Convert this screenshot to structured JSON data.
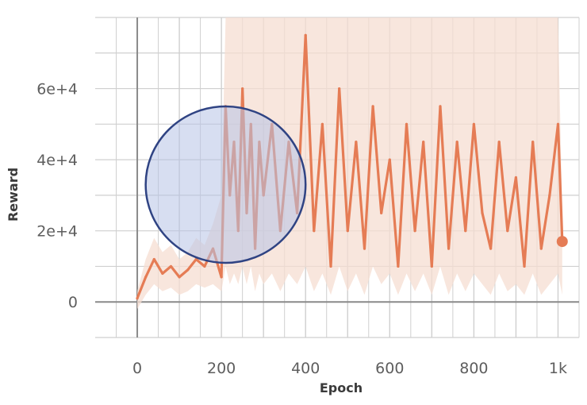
{
  "chart_data": {
    "type": "line",
    "xlabel": "Epoch",
    "ylabel": "Reward",
    "xlim": [
      -100,
      1050
    ],
    "ylim": [
      -10000,
      80000
    ],
    "x_ticks": [
      0,
      200,
      400,
      600,
      800,
      1000
    ],
    "x_tick_labels": [
      "0",
      "200",
      "400",
      "600",
      "800",
      "1k"
    ],
    "y_ticks": [
      0,
      20000,
      40000,
      60000
    ],
    "y_tick_labels": [
      "0",
      "2e+4",
      "4e+4",
      "6e+4"
    ],
    "grid": true,
    "colors": {
      "line": "#e57c55",
      "band": "#f6ddd2",
      "highlight_fill": "#b7c3e6",
      "highlight_stroke": "#2f4383",
      "grid": "#cfcfcf",
      "axis": "#8a8a8a"
    },
    "series": [
      {
        "x": [
          0,
          20,
          40,
          60,
          80,
          100,
          120,
          140,
          160,
          180,
          200,
          210,
          220,
          230,
          240,
          250,
          260,
          270,
          280,
          290,
          300,
          320,
          340,
          360,
          380,
          400,
          420,
          440,
          460,
          480,
          500,
          520,
          540,
          560,
          580,
          600,
          620,
          640,
          660,
          680,
          700,
          720,
          740,
          760,
          780,
          800,
          820,
          840,
          860,
          880,
          900,
          920,
          940,
          960,
          980,
          1000,
          1010
        ],
        "y": [
          1000,
          7000,
          12000,
          8000,
          10000,
          7000,
          9000,
          12000,
          10000,
          15000,
          7000,
          55000,
          30000,
          45000,
          20000,
          60000,
          25000,
          50000,
          15000,
          45000,
          30000,
          50000,
          20000,
          45000,
          25000,
          75000,
          20000,
          50000,
          10000,
          60000,
          20000,
          45000,
          15000,
          55000,
          25000,
          40000,
          10000,
          50000,
          20000,
          45000,
          10000,
          55000,
          15000,
          45000,
          20000,
          50000,
          25000,
          15000,
          45000,
          20000,
          35000,
          10000,
          45000,
          15000,
          30000,
          50000,
          17000
        ],
        "low": [
          -2000,
          2000,
          5000,
          3000,
          4000,
          2000,
          3000,
          5000,
          4000,
          5000,
          3000,
          10000,
          5000,
          8000,
          5000,
          10000,
          5000,
          10000,
          3000,
          8000,
          5000,
          8000,
          3000,
          8000,
          5000,
          10000,
          3000,
          8000,
          2000,
          10000,
          3000,
          8000,
          2000,
          10000,
          5000,
          8000,
          2000,
          8000,
          3000,
          8000,
          2000,
          10000,
          2000,
          8000,
          3000,
          8000,
          5000,
          2000,
          8000,
          3000,
          5000,
          2000,
          8000,
          2000,
          5000,
          8000,
          2000
        ],
        "high": [
          3000,
          12000,
          18000,
          14000,
          16000,
          12000,
          14000,
          18000,
          16000,
          22000,
          30000,
          80000,
          80000,
          80000,
          80000,
          80000,
          80000,
          80000,
          80000,
          80000,
          80000,
          80000,
          80000,
          80000,
          80000,
          80000,
          80000,
          80000,
          80000,
          80000,
          80000,
          80000,
          80000,
          80000,
          80000,
          80000,
          80000,
          80000,
          80000,
          80000,
          80000,
          80000,
          80000,
          80000,
          80000,
          80000,
          80000,
          80000,
          80000,
          80000,
          80000,
          80000,
          80000,
          80000,
          80000,
          80000,
          25000
        ]
      }
    ],
    "highlight_circle": {
      "cx": 210,
      "cy": 33000,
      "rx": 190,
      "ry": 22000
    }
  }
}
